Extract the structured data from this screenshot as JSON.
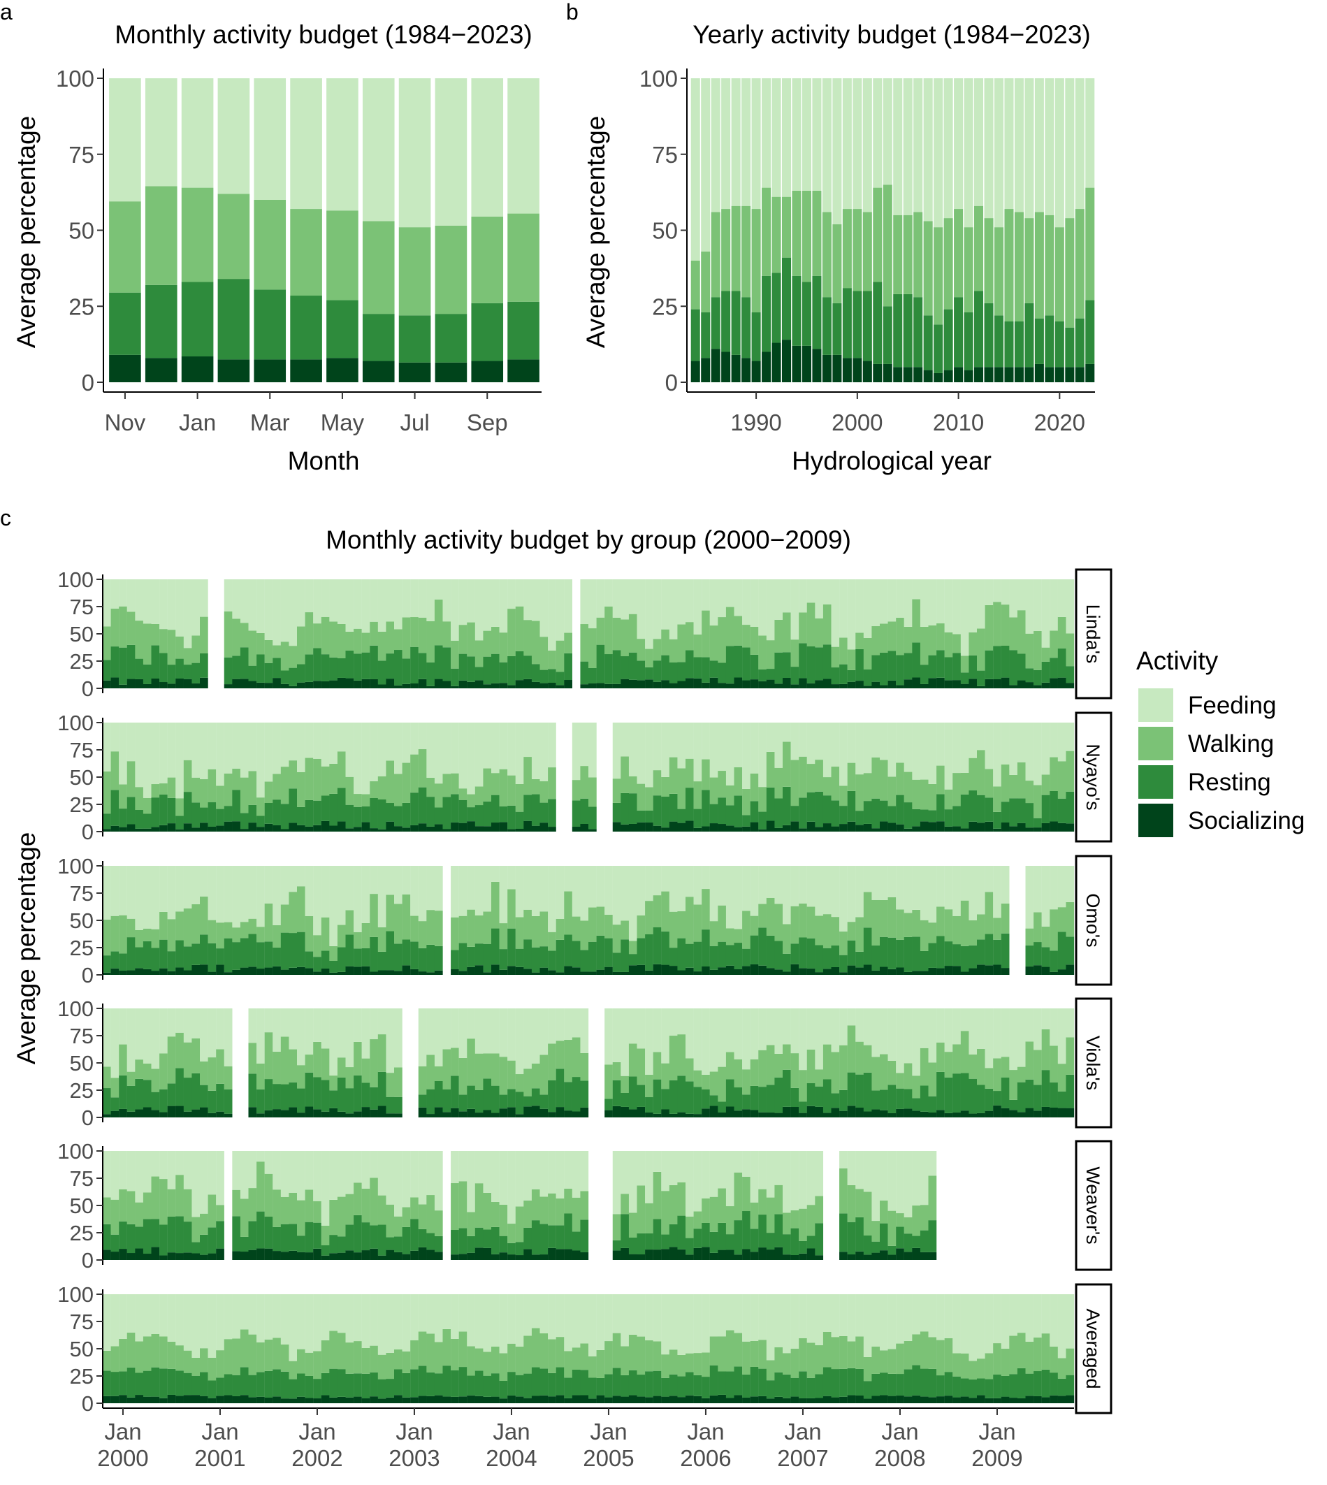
{
  "figure": {
    "panel_labels": [
      "a",
      "b",
      "c"
    ],
    "activities": [
      "Feeding",
      "Walking",
      "Resting",
      "Socializing"
    ],
    "colors": {
      "Feeding": "#c7e9c0",
      "Walking": "#7bc276",
      "Resting": "#2e8b3c",
      "Socializing": "#00441b"
    }
  },
  "chart_data": [
    {
      "panel": "a",
      "type": "bar",
      "stacked": true,
      "title": "Monthly activity budget (1984−2023)",
      "xlabel": "Month",
      "ylabel": "Average percentage",
      "ylim": [
        0,
        100
      ],
      "yticks": [
        0,
        25,
        50,
        75,
        100
      ],
      "tick_labels": [
        "Nov",
        "Jan",
        "Mar",
        "May",
        "Jul",
        "Sep"
      ],
      "categories": [
        "Nov",
        "Dec",
        "Jan",
        "Feb",
        "Mar",
        "Apr",
        "May",
        "Jun",
        "Jul",
        "Aug",
        "Sep",
        "Oct"
      ],
      "series": [
        {
          "name": "Socializing",
          "values": [
            9,
            8,
            8.5,
            7.5,
            7.5,
            7.5,
            8,
            7,
            6.5,
            6.5,
            7,
            7.5
          ]
        },
        {
          "name": "Resting",
          "values": [
            20.5,
            24,
            24.5,
            26.5,
            23,
            21,
            19,
            15.5,
            15.5,
            16,
            19,
            19
          ]
        },
        {
          "name": "Walking",
          "values": [
            30,
            32.5,
            31,
            28,
            29.5,
            28.5,
            29.5,
            30.5,
            29,
            29,
            28.5,
            29
          ]
        },
        {
          "name": "Feeding",
          "values": [
            40.5,
            35.5,
            36,
            38,
            40,
            43,
            43.5,
            47,
            49,
            48.5,
            45.5,
            44.5
          ]
        }
      ]
    },
    {
      "panel": "b",
      "type": "bar",
      "stacked": true,
      "title": "Yearly activity budget (1984−2023)",
      "xlabel": "Hydrological year",
      "ylabel": "Average percentage",
      "ylim": [
        0,
        100
      ],
      "yticks": [
        0,
        25,
        50,
        75,
        100
      ],
      "tick_labels": [
        "1990",
        "2000",
        "2010",
        "2020"
      ],
      "x": [
        1984,
        1985,
        1986,
        1987,
        1988,
        1989,
        1990,
        1991,
        1992,
        1993,
        1994,
        1995,
        1996,
        1997,
        1998,
        1999,
        2000,
        2001,
        2002,
        2003,
        2004,
        2005,
        2006,
        2007,
        2008,
        2009,
        2010,
        2011,
        2012,
        2013,
        2014,
        2015,
        2016,
        2017,
        2018,
        2019,
        2020,
        2021,
        2022,
        2023
      ],
      "series": [
        {
          "name": "Socializing",
          "values": [
            7,
            8,
            11,
            10,
            9,
            8,
            7,
            10,
            13,
            14,
            12,
            12,
            11,
            9,
            9,
            8,
            8,
            7,
            6,
            6,
            5,
            5,
            5,
            4,
            3,
            4,
            5,
            4,
            5,
            5,
            5,
            5,
            5,
            5,
            6,
            5,
            5,
            5,
            5,
            6
          ]
        },
        {
          "name": "Resting",
          "values": [
            17,
            15,
            17,
            20,
            21,
            20,
            16,
            25,
            23,
            27,
            23,
            21,
            24,
            19,
            17,
            23,
            22,
            23,
            27,
            19,
            24,
            24,
            23,
            18,
            16,
            20,
            23,
            19,
            25,
            21,
            17,
            15,
            15,
            21,
            15,
            17,
            15,
            13,
            16,
            21
          ]
        },
        {
          "name": "Walking",
          "values": [
            16,
            20,
            28,
            27,
            28,
            30,
            34,
            29,
            25,
            20,
            28,
            30,
            28,
            28,
            26,
            26,
            27,
            26,
            31,
            40,
            26,
            26,
            28,
            31,
            32,
            30,
            29,
            28,
            28,
            28,
            29,
            37,
            36,
            28,
            35,
            33,
            31,
            36,
            36,
            37
          ]
        },
        {
          "name": "Feeding",
          "values": [
            60,
            57,
            44,
            43,
            42,
            42,
            43,
            36,
            39,
            39,
            37,
            37,
            37,
            44,
            48,
            43,
            43,
            44,
            36,
            35,
            45,
            45,
            44,
            47,
            49,
            46,
            43,
            49,
            42,
            46,
            49,
            43,
            44,
            46,
            44,
            45,
            49,
            46,
            43,
            36
          ]
        }
      ]
    },
    {
      "panel": "c",
      "type": "bar",
      "stacked": true,
      "title": "Monthly activity budget by group (2000−2009)",
      "xlabel": "",
      "ylabel": "Average percentage",
      "ylim": [
        0,
        100
      ],
      "yticks": [
        0,
        25,
        50,
        75,
        100
      ],
      "legend_title": "Activity",
      "legend_position": "right",
      "tick_labels": [
        "Jan\n2000",
        "Jan\n2001",
        "Jan\n2002",
        "Jan\n2003",
        "Jan\n2004",
        "Jan\n2005",
        "Jan\n2006",
        "Jan\n2007",
        "Jan\n2008",
        "Jan\n2009"
      ],
      "month_range": "Nov 1999 – Oct 2009 (monthly bars)",
      "groups": [
        {
          "name": "Linda's",
          "missing_months": [
            13,
            14,
            58
          ],
          "social_mean": 6,
          "resting_mean": 23,
          "walking_mean": 28
        },
        {
          "name": "Nyayo's",
          "missing_months": [
            56,
            57,
            61,
            62
          ],
          "social_mean": 6,
          "resting_mean": 22,
          "walking_mean": 26
        },
        {
          "name": "Omo's",
          "missing_months": [
            42,
            112,
            113
          ],
          "social_mean": 6,
          "resting_mean": 24,
          "walking_mean": 28
        },
        {
          "name": "Viola's",
          "missing_months": [
            16,
            17,
            37,
            38,
            60,
            61
          ],
          "social_mean": 7,
          "resting_mean": 23,
          "walking_mean": 28
        },
        {
          "name": "Weaver's",
          "missing_months": [
            15,
            42,
            60,
            61,
            62,
            89,
            90,
            103,
            104,
            105,
            106,
            107,
            108,
            109,
            110,
            111,
            112,
            113,
            114,
            115,
            116,
            117,
            118,
            119
          ],
          "social_mean": 8,
          "resting_mean": 22,
          "walking_mean": 29
        },
        {
          "name": "Averaged",
          "missing_months": [],
          "social_mean": 6,
          "resting_mean": 22,
          "walking_mean": 27
        }
      ]
    }
  ]
}
